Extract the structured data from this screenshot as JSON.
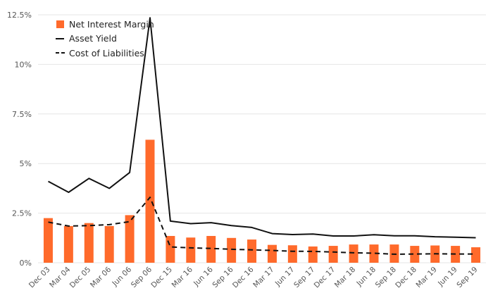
{
  "chart_data": {
    "type": "bar",
    "categories": [
      "Dec 03",
      "Mar 04",
      "Dec 05",
      "Mar 06",
      "Jun 06",
      "Sep 06",
      "Dec 15",
      "Mar 16",
      "Jun 16",
      "Sep 16",
      "Dec 16",
      "Mar 17",
      "Jun 17",
      "Sep 17",
      "Dec 17",
      "Mar 18",
      "Jun 18",
      "Sep 18",
      "Dec 18",
      "Mar 19",
      "Jun 19",
      "Sep 19"
    ],
    "series": [
      {
        "name": "Net Interest Margin",
        "type": "bar",
        "color": "#ff6a2b",
        "values": [
          2.25,
          1.85,
          2.0,
          1.85,
          2.4,
          6.2,
          1.35,
          1.27,
          1.35,
          1.25,
          1.17,
          0.9,
          0.88,
          0.82,
          0.85,
          0.92,
          0.92,
          0.92,
          0.85,
          0.87,
          0.85,
          0.78
        ]
      },
      {
        "name": "Asset Yield",
        "type": "line",
        "style": "solid",
        "color": "#111111",
        "values": [
          4.1,
          3.55,
          4.25,
          3.75,
          4.55,
          12.35,
          2.1,
          1.97,
          2.02,
          1.87,
          1.78,
          1.47,
          1.42,
          1.45,
          1.35,
          1.35,
          1.41,
          1.36,
          1.36,
          1.31,
          1.29,
          1.26
        ]
      },
      {
        "name": "Cost of Liabilities",
        "type": "line",
        "style": "dashed",
        "color": "#111111",
        "values": [
          2.05,
          1.85,
          1.87,
          1.92,
          2.07,
          3.3,
          0.8,
          0.75,
          0.72,
          0.68,
          0.65,
          0.62,
          0.58,
          0.57,
          0.54,
          0.5,
          0.48,
          0.43,
          0.44,
          0.45,
          0.44,
          0.44
        ]
      }
    ],
    "y_ticks": [
      0,
      2.5,
      5,
      7.5,
      10,
      12.5
    ],
    "y_tick_labels": [
      "0%",
      "2.5%",
      "5%",
      "7.5%",
      "10%",
      "12.5%"
    ],
    "ylim": [
      0,
      12.5
    ],
    "grid": true,
    "legend_position": "top-left",
    "title": "",
    "xlabel": "",
    "ylabel": ""
  }
}
